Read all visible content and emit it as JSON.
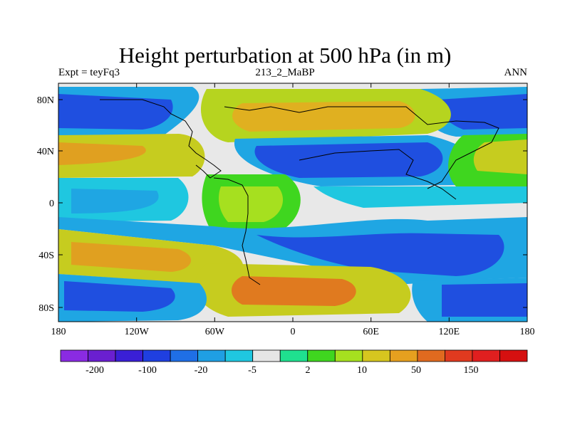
{
  "header": {
    "title": "Height perturbation at 500 hPa (in m)",
    "left_label": "Expt = teyFq3",
    "center_label": "213_2_MaBP",
    "right_label": "ANN"
  },
  "map": {
    "lat_ticks": [
      "80N",
      "40N",
      "0",
      "40S",
      "80S"
    ],
    "lon_ticks": [
      "180",
      "120W",
      "60W",
      "0",
      "60E",
      "120E",
      "180"
    ]
  },
  "colorbar": {
    "colors": [
      "#8a2be2",
      "#6a1fd0",
      "#3a1fd6",
      "#1f3fe0",
      "#1f6fe6",
      "#1f9fe3",
      "#1fc7e0",
      "#e6e6e6",
      "#1fe08f",
      "#3fd61f",
      "#a6e01f",
      "#d6c61f",
      "#e6a01f",
      "#e06a1f",
      "#e03a1f",
      "#e01f1f",
      "#d61010"
    ],
    "labels": [
      "-200",
      "-100",
      "-20",
      "-5",
      "2",
      "10",
      "50",
      "150"
    ]
  }
}
